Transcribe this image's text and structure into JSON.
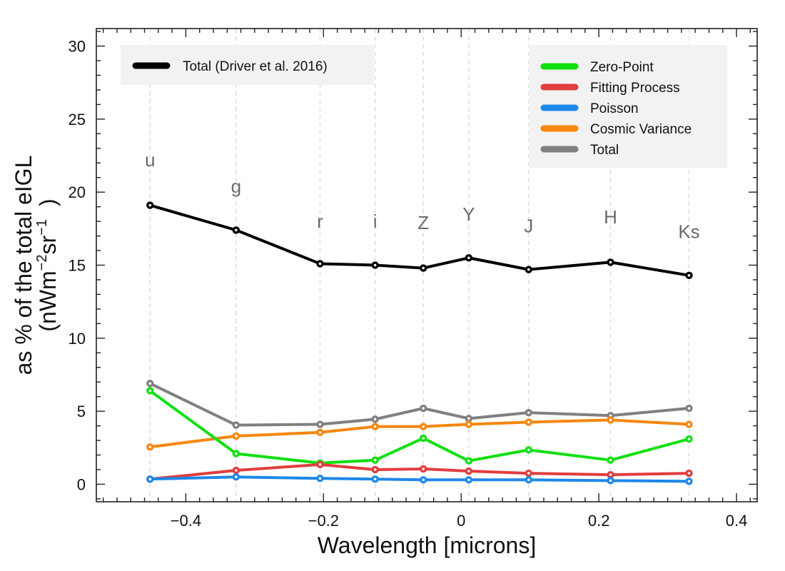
{
  "chart_data": {
    "type": "line",
    "xlabel": "Wavelength [microns]",
    "ylabel_line1": "as % of the total eIGL",
    "ylabel_line2": {
      "open": "(nWm",
      "exp1": "−2",
      "mid": "sr",
      "exp2": "−1",
      "close": ")"
    },
    "xlim": [
      -0.53,
      0.43
    ],
    "ylim": [
      -1.2,
      31.2
    ],
    "xticks": [
      -0.4,
      -0.2,
      0,
      0.2,
      0.4
    ],
    "xtick_labels": [
      "−0.4",
      "−0.2",
      "0",
      "0.2",
      "0.4"
    ],
    "yticks": [
      0,
      5,
      10,
      15,
      20,
      25,
      30
    ],
    "ytick_labels": [
      "0",
      "5",
      "10",
      "15",
      "20",
      "25",
      "30"
    ],
    "x": [
      -0.452,
      -0.327,
      -0.205,
      -0.125,
      -0.055,
      0.011,
      0.098,
      0.217,
      0.331
    ],
    "bands": [
      {
        "name": "u",
        "y": 22.2
      },
      {
        "name": "g",
        "y": 20.4
      },
      {
        "name": "r",
        "y": 18.0
      },
      {
        "name": "i",
        "y": 18.0
      },
      {
        "name": "Z",
        "y": 17.9
      },
      {
        "name": "Y",
        "y": 18.5
      },
      {
        "name": "J",
        "y": 17.7
      },
      {
        "name": "H",
        "y": 18.3
      },
      {
        "name": "Ks",
        "y": 17.3
      }
    ],
    "series": [
      {
        "name": "Total (Driver et al. 2016)",
        "color": "#000000",
        "values": [
          19.1,
          17.4,
          15.1,
          15.0,
          14.8,
          15.5,
          14.7,
          15.2,
          14.3
        ]
      },
      {
        "name": "Total",
        "color": "#808080",
        "values": [
          6.9,
          4.05,
          4.1,
          4.45,
          5.2,
          4.5,
          4.9,
          4.7,
          5.2
        ]
      },
      {
        "name": "Cosmic Variance",
        "color": "#f7870f",
        "values": [
          2.55,
          3.3,
          3.55,
          3.95,
          3.95,
          4.1,
          4.25,
          4.4,
          4.1
        ]
      },
      {
        "name": "Zero-Point",
        "color": "#10e010",
        "values": [
          6.4,
          2.1,
          1.45,
          1.65,
          3.15,
          1.6,
          2.35,
          1.65,
          3.1
        ]
      },
      {
        "name": "Fitting Process",
        "color": "#e23d3d",
        "values": [
          0.35,
          0.95,
          1.35,
          1.0,
          1.05,
          0.9,
          0.75,
          0.65,
          0.75
        ]
      },
      {
        "name": "Poisson",
        "color": "#1e88e8",
        "values": [
          0.35,
          0.5,
          0.4,
          0.35,
          0.3,
          0.3,
          0.3,
          0.25,
          0.2
        ]
      }
    ],
    "legend_main": [
      "Total (Driver et al. 2016)"
    ],
    "legend_components": [
      "Zero-Point",
      "Fitting Process",
      "Poisson",
      "Cosmic Variance",
      "Total"
    ],
    "grid": "vertical dashed lines at band wavelengths"
  }
}
